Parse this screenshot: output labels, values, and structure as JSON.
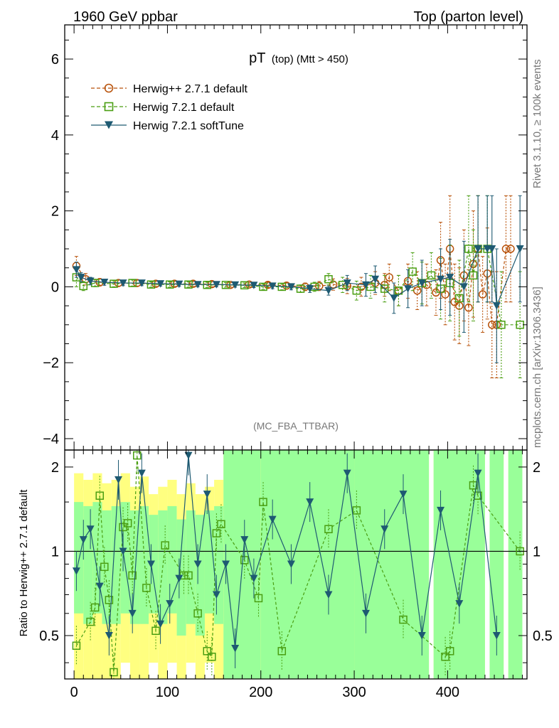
{
  "header": {
    "left": "1960 GeV ppbar",
    "right": "Top (parton level)"
  },
  "side_labels": {
    "rivet": "Rivet 3.1.10, ≥ 100k events",
    "mcplots": "mcplots.cern.ch [arXiv:1306.3436]"
  },
  "chart_data": [
    {
      "type": "scatter",
      "title_main": "pT",
      "title_sub": "(top) (Mtt > 450)",
      "analysis_tag": "(MC_FBA_TTBAR)",
      "xlim": [
        -10,
        485
      ],
      "ylim": [
        -4.3,
        6.9
      ],
      "y_ticks": [
        "−4",
        "−2",
        "0",
        "2",
        "4",
        "6"
      ],
      "y_tick_values": [
        -4,
        -2,
        0,
        2,
        4,
        6
      ],
      "legend_position": "top-left",
      "series": [
        {
          "name": "Herwig++ 2.7.1 default",
          "color": "#b8520a",
          "marker": "circle",
          "line": "dashed",
          "x": [
            2.5,
            12.5,
            27.5,
            47.5,
            67.5,
            87.5,
            107.5,
            127.5,
            147.5,
            167.5,
            187.5,
            207.5,
            227.5,
            247.5,
            262.5,
            277.5,
            292.5,
            307.5,
            322.5,
            332.5,
            337.5,
            347.5,
            357.5,
            367.5,
            377.5,
            387.5,
            392.5,
            397.5,
            402.5,
            407.5,
            412.5,
            417.5,
            422.5,
            427.5,
            432.5,
            437.5,
            442.5,
            447.5,
            452.5,
            462.5,
            467.5
          ],
          "y": [
            0.55,
            0.2,
            0.12,
            0.1,
            0.1,
            0.08,
            0.08,
            0.08,
            0.07,
            0.05,
            0.06,
            0.05,
            0.03,
            0.0,
            0.02,
            0.06,
            0.02,
            0.0,
            0.1,
            0.05,
            0.25,
            -0.1,
            0.15,
            -0.1,
            0.05,
            -0.15,
            0.7,
            -0.2,
            1.0,
            -0.4,
            -0.5,
            0.3,
            -0.55,
            0.6,
            1.0,
            -0.2,
            0.35,
            -1.0,
            -1.0,
            1.0,
            1.0
          ],
          "err": [
            0.25,
            0.15,
            0.1,
            0.08,
            0.08,
            0.07,
            0.07,
            0.07,
            0.07,
            0.06,
            0.06,
            0.07,
            0.08,
            0.1,
            0.12,
            0.15,
            0.2,
            0.25,
            0.3,
            0.3,
            0.35,
            0.4,
            0.45,
            0.5,
            0.55,
            0.6,
            1.0,
            0.8,
            1.4,
            1.0,
            1.0,
            1.2,
            1.0,
            1.4,
            1.4,
            1.0,
            1.2,
            1.4,
            1.4,
            1.4,
            1.4
          ]
        },
        {
          "name": "Herwig 7.2.1 default",
          "color": "#4a9e12",
          "marker": "square",
          "line": "dashed",
          "x": [
            2.5,
            10,
            22.5,
            42.5,
            62.5,
            82.5,
            102.5,
            122.5,
            142.5,
            162.5,
            182.5,
            202.5,
            222.5,
            242.5,
            257.5,
            272.5,
            287.5,
            302.5,
            317.5,
            332.5,
            347.5,
            362.5,
            372.5,
            382.5,
            392.5,
            402.5,
            412.5,
            422.5,
            427.5,
            432.5,
            442.5,
            457.5,
            477.5
          ],
          "y": [
            0.25,
            0.02,
            0.1,
            0.08,
            0.1,
            0.06,
            0.06,
            0.06,
            0.05,
            0.05,
            0.04,
            0.0,
            0.0,
            -0.05,
            0.0,
            0.2,
            0.05,
            -0.1,
            0.0,
            -0.05,
            -0.1,
            0.4,
            0.1,
            0.3,
            -0.05,
            0.1,
            -0.3,
            1.0,
            0.3,
            1.0,
            1.0,
            -1.0,
            -1.0
          ],
          "err": [
            0.25,
            0.12,
            0.1,
            0.08,
            0.08,
            0.07,
            0.07,
            0.07,
            0.07,
            0.06,
            0.06,
            0.07,
            0.08,
            0.1,
            0.12,
            0.15,
            0.2,
            0.25,
            0.3,
            0.35,
            0.4,
            0.5,
            0.55,
            0.6,
            0.8,
            1.0,
            1.0,
            1.4,
            1.2,
            1.4,
            1.4,
            1.4,
            1.4
          ]
        },
        {
          "name": "Herwig 7.2.1 softTune",
          "color": "#1e5a72",
          "marker": "triangle-down",
          "line": "solid",
          "x": [
            2.5,
            7.5,
            17.5,
            32.5,
            52.5,
            72.5,
            92.5,
            112.5,
            132.5,
            152.5,
            172.5,
            192.5,
            212.5,
            232.5,
            252.5,
            272.5,
            292.5,
            312.5,
            322.5,
            342.5,
            357.5,
            372.5,
            392.5,
            402.5,
            417.5,
            432.5,
            442.5,
            447.5,
            452.5,
            477.5
          ],
          "y": [
            0.45,
            0.25,
            0.15,
            0.12,
            0.1,
            0.1,
            0.08,
            0.07,
            0.06,
            0.06,
            0.05,
            0.04,
            0.02,
            0.0,
            -0.05,
            -0.1,
            0.1,
            0.05,
            0.2,
            -0.3,
            -0.05,
            0.1,
            0.2,
            0.25,
            0.0,
            1.0,
            1.0,
            1.0,
            -0.5,
            1.0
          ],
          "err": [
            0.2,
            0.12,
            0.1,
            0.08,
            0.07,
            0.07,
            0.06,
            0.06,
            0.06,
            0.06,
            0.06,
            0.06,
            0.07,
            0.08,
            0.1,
            0.12,
            0.2,
            0.3,
            0.35,
            0.4,
            0.5,
            0.6,
            0.8,
            1.0,
            1.2,
            1.4,
            1.4,
            1.4,
            1.5,
            1.4
          ]
        }
      ]
    },
    {
      "type": "line",
      "ylabel": "Ratio to Herwig++ 2.7.1 default",
      "xlim": [
        -10,
        485
      ],
      "ylim": [
        0.35,
        2.3
      ],
      "x_ticks": [
        "0",
        "100",
        "200",
        "300",
        "400"
      ],
      "x_tick_values": [
        0,
        100,
        200,
        300,
        400
      ],
      "y_ticks": [
        "0.5",
        "1",
        "2"
      ],
      "y_tick_values": [
        0.5,
        1,
        2
      ],
      "reference_line": 1,
      "band_colors": {
        "outer": "#ffff80",
        "inner": "#99ff99"
      },
      "series": [
        {
          "name": "Herwig 7.2.1 default",
          "color": "#4a9e12",
          "marker": "square",
          "line": "dashed",
          "x": [
            2.5,
            17.5,
            22.5,
            27.5,
            32.5,
            37.5,
            42.5,
            52.5,
            57.5,
            62.5,
            67.5,
            77.5,
            87.5,
            97.5,
            117.5,
            122.5,
            132.5,
            142.5,
            147.5,
            152.5,
            157.5,
            182.5,
            197.5,
            202.5,
            222.5,
            272.5,
            302.5,
            352.5,
            397.5,
            402.5,
            427.5,
            432.5,
            477.5
          ],
          "y": [
            0.46,
            0.56,
            0.63,
            1.58,
            0.88,
            0.67,
            0.37,
            1.22,
            1.26,
            0.82,
            2.2,
            0.74,
            0.52,
            1.05,
            0.82,
            0.82,
            0.6,
            0.44,
            0.42,
            1.16,
            1.25,
            0.93,
            0.68,
            1.5,
            0.44,
            1.2,
            1.4,
            0.57,
            0.42,
            0.44,
            1.72,
            1.58,
            1.0
          ]
        },
        {
          "name": "Herwig 7.2.1 softTune",
          "color": "#1e5a72",
          "marker": "triangle-down",
          "line": "solid",
          "x": [
            2.5,
            10,
            17.5,
            27.5,
            37.5,
            47.5,
            52.5,
            62.5,
            72.5,
            82.5,
            92.5,
            102.5,
            112.5,
            122.5,
            132.5,
            142.5,
            152.5,
            162.5,
            172.5,
            182.5,
            192.5,
            212.5,
            232.5,
            252.5,
            272.5,
            292.5,
            312.5,
            332.5,
            352.5,
            372.5,
            392.5,
            412.5,
            432.5,
            452.5
          ],
          "y": [
            0.85,
            1.1,
            1.2,
            0.75,
            0.5,
            1.8,
            1.0,
            0.6,
            1.9,
            0.9,
            0.55,
            0.65,
            0.8,
            2.2,
            0.9,
            1.6,
            0.7,
            0.9,
            0.45,
            1.1,
            0.8,
            1.3,
            0.9,
            1.5,
            0.7,
            1.9,
            0.6,
            1.2,
            1.6,
            0.5,
            1.4,
            0.65,
            1.9,
            0.5
          ]
        }
      ],
      "bands": [
        {
          "x0": 0,
          "x1": 10,
          "lo_outer": 0.35,
          "hi_outer": 1.9,
          "lo_inner": 0.6,
          "hi_inner": 1.5
        },
        {
          "x0": 10,
          "x1": 20,
          "lo_outer": 0.35,
          "hi_outer": 1.8,
          "lo_inner": 0.55,
          "hi_inner": 1.45
        },
        {
          "x0": 20,
          "x1": 30,
          "lo_outer": 0.35,
          "hi_outer": 1.9,
          "lo_inner": 0.6,
          "hi_inner": 1.5
        },
        {
          "x0": 30,
          "x1": 40,
          "lo_outer": 0.35,
          "hi_outer": 1.75,
          "lo_inner": 0.55,
          "hi_inner": 1.4
        },
        {
          "x0": 40,
          "x1": 50,
          "lo_outer": 0.35,
          "hi_outer": 1.8,
          "lo_inner": 0.55,
          "hi_inner": 1.45
        },
        {
          "x0": 50,
          "x1": 60,
          "lo_outer": 0.4,
          "hi_outer": 1.9,
          "lo_inner": 0.6,
          "hi_inner": 1.5
        },
        {
          "x0": 60,
          "x1": 70,
          "lo_outer": 0.35,
          "hi_outer": 1.7,
          "lo_inner": 0.55,
          "hi_inner": 1.4
        },
        {
          "x0": 70,
          "x1": 80,
          "lo_outer": 0.35,
          "hi_outer": 1.85,
          "lo_inner": 0.55,
          "hi_inner": 1.45
        },
        {
          "x0": 80,
          "x1": 90,
          "lo_outer": 0.4,
          "hi_outer": 1.6,
          "lo_inner": 0.6,
          "hi_inner": 1.35
        },
        {
          "x0": 90,
          "x1": 100,
          "lo_outer": 0.35,
          "hi_outer": 1.7,
          "lo_inner": 0.55,
          "hi_inner": 1.4
        },
        {
          "x0": 100,
          "x1": 110,
          "lo_outer": 0.4,
          "hi_outer": 1.8,
          "lo_inner": 0.6,
          "hi_inner": 1.45
        },
        {
          "x0": 110,
          "x1": 120,
          "lo_outer": 0.35,
          "hi_outer": 1.6,
          "lo_inner": 0.5,
          "hi_inner": 1.3
        },
        {
          "x0": 120,
          "x1": 130,
          "lo_outer": 0.4,
          "hi_outer": 1.75,
          "lo_inner": 0.55,
          "hi_inner": 1.4
        },
        {
          "x0": 130,
          "x1": 140,
          "lo_outer": 0.35,
          "hi_outer": 1.6,
          "lo_inner": 0.5,
          "hi_inner": 1.35
        },
        {
          "x0": 140,
          "x1": 150,
          "lo_outer": 0.4,
          "hi_outer": 1.7,
          "lo_inner": 0.6,
          "hi_inner": 1.4
        },
        {
          "x0": 150,
          "x1": 160,
          "lo_outer": 0.35,
          "hi_outer": 1.8,
          "lo_inner": 0.55,
          "hi_inner": 1.45
        },
        {
          "x0": 160,
          "x1": 200,
          "lo_outer": 0.35,
          "hi_outer": 2.3,
          "lo_inner": 0.35,
          "hi_inner": 2.3
        },
        {
          "x0": 200,
          "x1": 300,
          "lo_outer": 0.35,
          "hi_outer": 2.3,
          "lo_inner": 0.35,
          "hi_inner": 2.3
        },
        {
          "x0": 300,
          "x1": 380,
          "lo_outer": 0.35,
          "hi_outer": 2.3,
          "lo_inner": 0.35,
          "hi_inner": 2.3
        },
        {
          "x0": 385,
          "x1": 440,
          "lo_outer": 0.35,
          "hi_outer": 2.3,
          "lo_inner": 0.35,
          "hi_inner": 2.3
        },
        {
          "x0": 445,
          "x1": 460,
          "lo_outer": 0.35,
          "hi_outer": 2.3,
          "lo_inner": 0.35,
          "hi_inner": 2.3
        },
        {
          "x0": 465,
          "x1": 480,
          "lo_outer": 0.35,
          "hi_outer": 2.3,
          "lo_inner": 0.35,
          "hi_inner": 2.3
        }
      ]
    }
  ]
}
